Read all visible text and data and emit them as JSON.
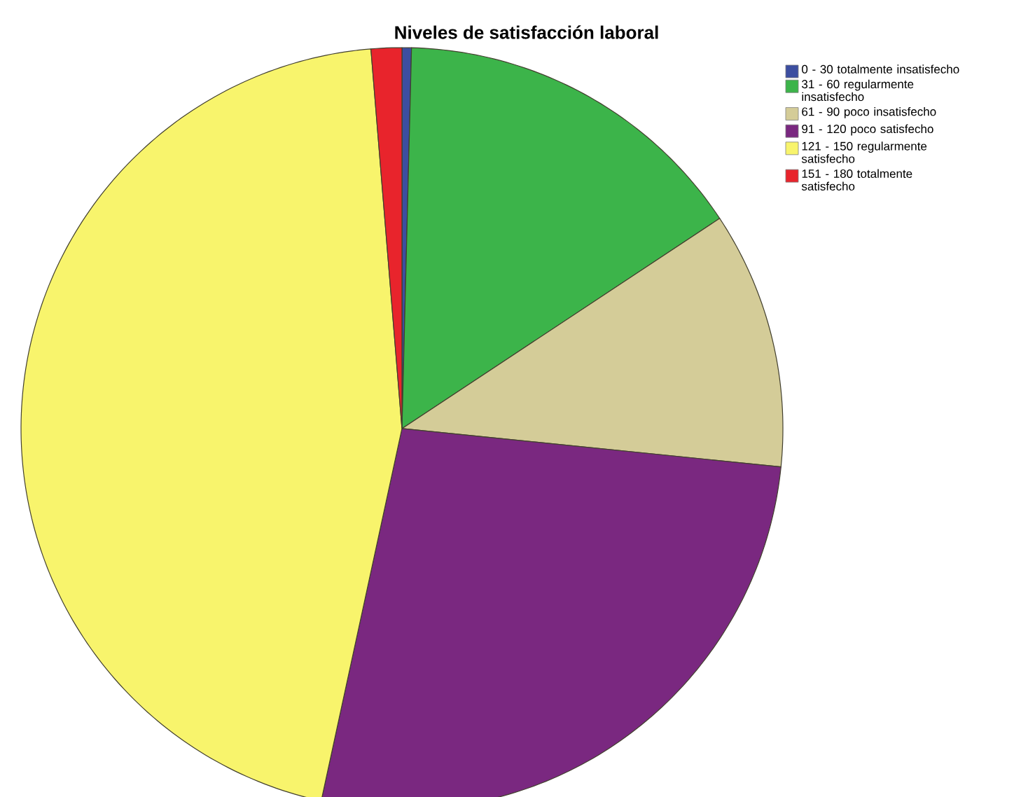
{
  "chart_data": {
    "type": "pie",
    "title": "Niveles de satisfacción laboral",
    "categories": [
      "0 - 30 totalmente insatisfecho",
      "31 - 60 regularmente insatisfecho",
      "61 - 90 poco insatisfecho",
      "91 - 120 poco satisfecho",
      "121 - 150 regularmente satisfecho",
      "151 - 180 totalmente satisfecho"
    ],
    "values": [
      0.4,
      15.3,
      10.9,
      26.8,
      45.3,
      1.3
    ],
    "colors": [
      "#3c4ea0",
      "#3cb44a",
      "#d4cc98",
      "#7a2880",
      "#f8f46c",
      "#e8242c"
    ],
    "legend": "top right"
  }
}
